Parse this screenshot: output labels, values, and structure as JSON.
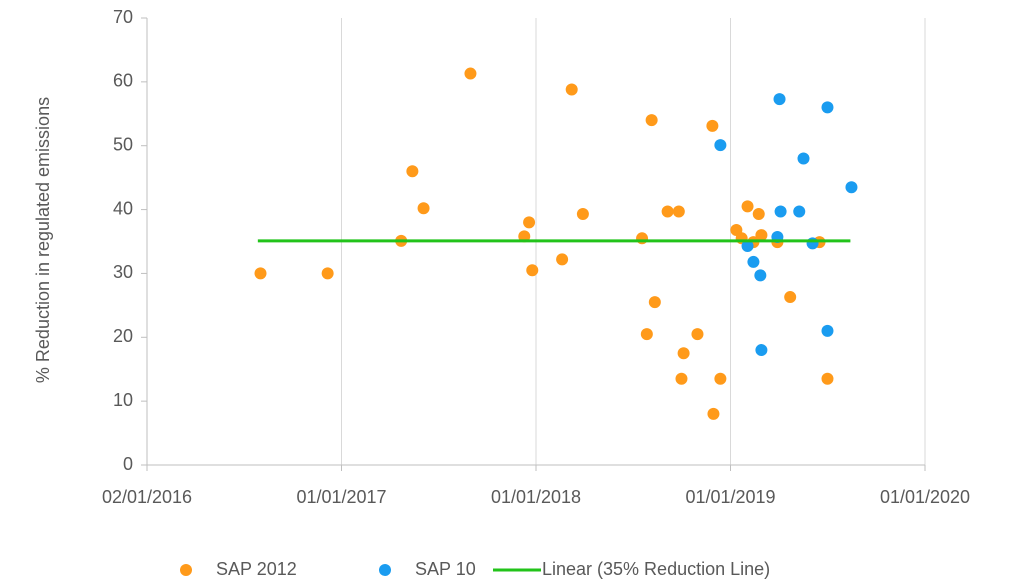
{
  "chart_data": {
    "type": "scatter",
    "y_label": "% Reduction in regulated emissions",
    "xlim": [
      "2016-01-02",
      "2020-01-01"
    ],
    "xticks": [
      {
        "value": "2016-01-02",
        "label": "02/01/2016"
      },
      {
        "value": "2017-01-01",
        "label": "01/01/2017"
      },
      {
        "value": "2018-01-01",
        "label": "01/01/2018"
      },
      {
        "value": "2019-01-01",
        "label": "01/01/2019"
      },
      {
        "value": "2020-01-01",
        "label": "01/01/2020"
      }
    ],
    "ylim": [
      0,
      70
    ],
    "yticks": [
      0,
      10,
      20,
      30,
      40,
      50,
      60,
      70
    ],
    "grid": "x",
    "legend": "bottom",
    "series": [
      {
        "name": "SAP 2012",
        "color": "#ff9a1a",
        "type": "scatter",
        "x": [
          "2016-08-02",
          "2016-12-06",
          "2017-04-23",
          "2017-05-14",
          "2017-06-04",
          "2017-08-31",
          "2017-12-10",
          "2017-12-19",
          "2017-12-25",
          "2018-02-19",
          "2018-03-09",
          "2018-03-30",
          "2018-07-19",
          "2018-07-28",
          "2018-08-06",
          "2018-08-12",
          "2018-09-05",
          "2018-09-26",
          "2018-10-01",
          "2018-10-05",
          "2018-10-31",
          "2018-11-28",
          "2018-11-30",
          "2018-12-13",
          "2019-01-12",
          "2019-01-22",
          "2019-02-02",
          "2019-02-13",
          "2019-02-23",
          "2019-02-28",
          "2019-03-30",
          "2019-04-23",
          "2019-06-17",
          "2019-07-02"
        ],
        "values": [
          30.0,
          30.0,
          35.1,
          46.0,
          40.2,
          61.3,
          35.8,
          38.0,
          30.5,
          32.2,
          58.8,
          39.3,
          35.5,
          20.5,
          54.0,
          25.5,
          39.7,
          39.7,
          13.5,
          17.5,
          20.5,
          53.1,
          8.0,
          13.5,
          36.8,
          35.5,
          40.5,
          34.9,
          39.3,
          36.0,
          34.9,
          26.3,
          34.9,
          13.5
        ]
      },
      {
        "name": "SAP 10",
        "color": "#1a9cf0",
        "type": "scatter",
        "x": [
          "2018-12-13",
          "2019-02-02",
          "2019-02-13",
          "2019-02-26",
          "2019-02-28",
          "2019-03-30",
          "2019-04-03",
          "2019-04-05",
          "2019-05-10",
          "2019-05-18",
          "2019-06-04",
          "2019-07-02",
          "2019-07-02",
          "2019-08-16"
        ],
        "values": [
          50.1,
          34.3,
          31.8,
          29.7,
          18.0,
          35.7,
          57.3,
          39.7,
          39.7,
          48.0,
          34.7,
          56.0,
          21.0,
          43.5
        ]
      },
      {
        "name": "Linear (35% Reduction Line)",
        "color": "#22c31a",
        "type": "line",
        "x": [
          "2016-07-28",
          "2019-08-14"
        ],
        "values": [
          35.1,
          35.1
        ]
      }
    ]
  }
}
